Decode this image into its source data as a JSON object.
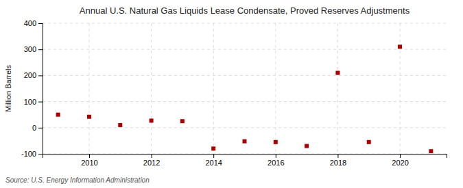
{
  "chart_data": {
    "type": "scatter",
    "title": "Annual U.S. Natural Gas Liquids Lease Condensate, Proved Reserves Adjustments",
    "ylabel": "Million Barrels",
    "annotations": [
      "Source: U.S. Energy Information Administration"
    ],
    "x": [
      2009,
      2010,
      2011,
      2012,
      2013,
      2014,
      2015,
      2016,
      2017,
      2018,
      2019,
      2020,
      2021
    ],
    "values": [
      50,
      42,
      10,
      27,
      25,
      -80,
      -52,
      -55,
      -70,
      210,
      -55,
      310,
      -90
    ],
    "color": "#aa0000",
    "marker": "square",
    "xlim": [
      2008.5,
      2021.5
    ],
    "ylim": [
      -100,
      400
    ],
    "xticks": [
      2010,
      2012,
      2014,
      2016,
      2018,
      2020
    ],
    "yticks": [
      -100,
      0,
      100,
      200,
      300,
      400
    ],
    "grid": true
  }
}
